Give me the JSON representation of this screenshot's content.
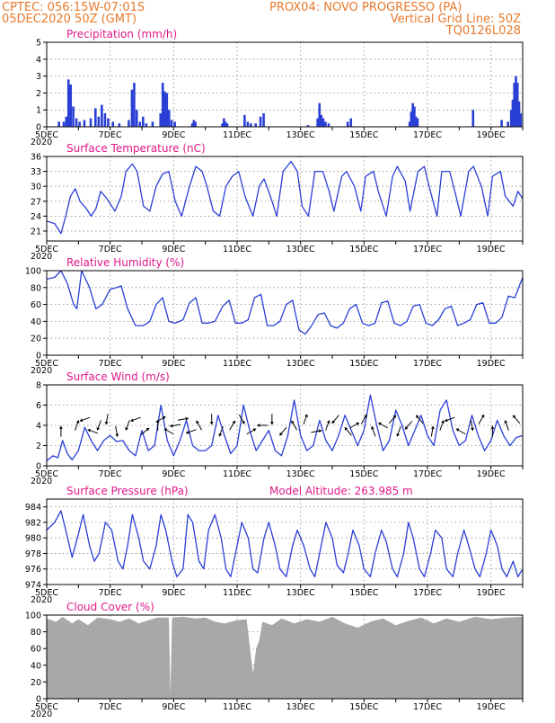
{
  "header": {
    "line1_left": "CPTEC:    056:15W-07:01S",
    "line1_right": "PROX04: NOVO PROGRESSO (PA)",
    "line2_left": "05DEC2020 50Z (GMT)",
    "line2_right": "Vertical Grid Line: 50Z",
    "line3_right": "TQ0126L028"
  },
  "colors": {
    "header": "#e8792b",
    "title": "#e0188a",
    "line": "#2a3fd6",
    "cloud": "#a8a8a8",
    "grid": "#8a8a8a"
  },
  "x_tick_labels": [
    "5DEC",
    "7DEC",
    "9DEC",
    "11DEC",
    "13DEC",
    "15DEC",
    "17DEC",
    "19DEC"
  ],
  "year_label": "2020",
  "chart_data": [
    {
      "id": "precip",
      "type": "bar",
      "title": "Precipitation (mm/h)",
      "ylim": [
        0,
        5
      ],
      "yticks": [
        "0",
        "1",
        "2",
        "3",
        "4",
        "5"
      ],
      "x_range_days": [
        0,
        15
      ],
      "bars": [
        [
          0.35,
          0.3
        ],
        [
          0.5,
          0.3
        ],
        [
          0.58,
          0.6
        ],
        [
          0.65,
          2.8
        ],
        [
          0.72,
          2.5
        ],
        [
          0.8,
          1.2
        ],
        [
          0.9,
          0.5
        ],
        [
          1.0,
          0.3
        ],
        [
          1.15,
          0.4
        ],
        [
          1.35,
          0.5
        ],
        [
          1.5,
          1.1
        ],
        [
          1.6,
          0.6
        ],
        [
          1.7,
          1.3
        ],
        [
          1.8,
          0.8
        ],
        [
          1.9,
          0.5
        ],
        [
          2.05,
          0.3
        ],
        [
          2.25,
          0.2
        ],
        [
          2.55,
          0.4
        ],
        [
          2.65,
          2.2
        ],
        [
          2.72,
          2.6
        ],
        [
          2.8,
          1.0
        ],
        [
          2.9,
          0.3
        ],
        [
          3.0,
          0.6
        ],
        [
          3.1,
          0.2
        ],
        [
          3.3,
          0.3
        ],
        [
          3.55,
          0.8
        ],
        [
          3.62,
          2.6
        ],
        [
          3.68,
          2.1
        ],
        [
          3.75,
          2.0
        ],
        [
          3.82,
          1.0
        ],
        [
          3.9,
          0.4
        ],
        [
          4.0,
          0.3
        ],
        [
          4.55,
          0.2
        ],
        [
          4.6,
          0.4
        ],
        [
          4.65,
          0.3
        ],
        [
          5.5,
          0.2
        ],
        [
          5.55,
          0.5
        ],
        [
          5.6,
          0.3
        ],
        [
          5.65,
          0.2
        ],
        [
          6.2,
          0.7
        ],
        [
          6.3,
          0.3
        ],
        [
          6.4,
          0.2
        ],
        [
          6.55,
          0.2
        ],
        [
          6.7,
          0.6
        ],
        [
          6.8,
          0.8
        ],
        [
          8.2,
          0.1
        ],
        [
          8.5,
          0.5
        ],
        [
          8.56,
          1.4
        ],
        [
          8.62,
          0.7
        ],
        [
          8.68,
          0.5
        ],
        [
          8.75,
          0.3
        ],
        [
          8.85,
          0.2
        ],
        [
          9.45,
          0.3
        ],
        [
          9.55,
          0.5
        ],
        [
          11.4,
          0.3
        ],
        [
          11.45,
          0.9
        ],
        [
          11.5,
          1.4
        ],
        [
          11.55,
          1.2
        ],
        [
          11.6,
          0.6
        ],
        [
          11.65,
          0.5
        ],
        [
          13.4,
          1.0
        ],
        [
          14.3,
          0.4
        ],
        [
          14.5,
          0.3
        ],
        [
          14.6,
          1.0
        ],
        [
          14.65,
          1.6
        ],
        [
          14.7,
          2.6
        ],
        [
          14.75,
          3.0
        ],
        [
          14.8,
          2.6
        ],
        [
          14.85,
          1.5
        ],
        [
          14.9,
          0.8
        ]
      ]
    },
    {
      "id": "temp",
      "type": "line",
      "title": "Surface Temperature (nC)",
      "ylim": [
        19,
        36
      ],
      "yticks": [
        "21",
        "24",
        "27",
        "30",
        "33",
        "36"
      ],
      "ytick_values": [
        21,
        24,
        27,
        30,
        33,
        36
      ],
      "x": [
        0,
        0.25,
        0.45,
        0.6,
        0.75,
        0.9,
        1.05,
        1.25,
        1.4,
        1.55,
        1.7,
        1.9,
        2.15,
        2.35,
        2.5,
        2.7,
        2.85,
        3.05,
        3.25,
        3.45,
        3.65,
        3.85,
        4.05,
        4.25,
        4.5,
        4.7,
        4.9,
        5.05,
        5.25,
        5.45,
        5.65,
        5.85,
        6.05,
        6.25,
        6.5,
        6.7,
        6.85,
        7.05,
        7.25,
        7.45,
        7.7,
        7.9,
        8.05,
        8.25,
        8.45,
        8.7,
        8.9,
        9.05,
        9.3,
        9.45,
        9.7,
        9.9,
        10.05,
        10.3,
        10.45,
        10.7,
        10.9,
        11.05,
        11.3,
        11.45,
        11.7,
        11.9,
        12.05,
        12.3,
        12.45,
        12.7,
        12.9,
        13.05,
        13.3,
        13.45,
        13.7,
        13.9,
        14.05,
        14.3,
        14.45,
        14.7,
        14.85,
        15.0
      ],
      "values": [
        23,
        22.5,
        20.5,
        24,
        28,
        29.5,
        27,
        25.5,
        24,
        25.5,
        29,
        27.5,
        25,
        28,
        33,
        34.5,
        33,
        26,
        25,
        30,
        32.5,
        33,
        27,
        24,
        30,
        34,
        33,
        30,
        25,
        24,
        30,
        32,
        33,
        28,
        24,
        30,
        31.5,
        28,
        24,
        33,
        35,
        33,
        26,
        24,
        33,
        33,
        29,
        25,
        32,
        33,
        30,
        25,
        32,
        33,
        29,
        24,
        32,
        34,
        31,
        25,
        33,
        34,
        30,
        24,
        33,
        33,
        28,
        24,
        33,
        34,
        30,
        24,
        32,
        33,
        28,
        26,
        29,
        27.5
      ]
    },
    {
      "id": "rh",
      "type": "line",
      "title": "Relative Humidity (%)",
      "ylim": [
        0,
        100
      ],
      "yticks": [
        "0",
        "20",
        "40",
        "60",
        "80",
        "100"
      ],
      "x": [
        0,
        0.25,
        0.45,
        0.65,
        0.85,
        0.95,
        1.1,
        1.35,
        1.55,
        1.75,
        2.0,
        2.2,
        2.35,
        2.55,
        2.8,
        3.05,
        3.25,
        3.45,
        3.65,
        3.85,
        4.05,
        4.3,
        4.5,
        4.7,
        4.9,
        5.1,
        5.3,
        5.55,
        5.75,
        5.95,
        6.15,
        6.35,
        6.55,
        6.75,
        6.95,
        7.15,
        7.35,
        7.55,
        7.75,
        7.95,
        8.15,
        8.35,
        8.55,
        8.75,
        8.95,
        9.15,
        9.35,
        9.55,
        9.75,
        9.95,
        10.15,
        10.35,
        10.55,
        10.75,
        10.95,
        11.15,
        11.35,
        11.55,
        11.75,
        11.95,
        12.15,
        12.35,
        12.55,
        12.75,
        12.95,
        13.15,
        13.35,
        13.55,
        13.75,
        13.95,
        14.15,
        14.35,
        14.55,
        14.75,
        15.0
      ],
      "values": [
        90,
        92,
        100,
        85,
        60,
        55,
        100,
        80,
        55,
        60,
        78,
        80,
        82,
        55,
        35,
        35,
        40,
        60,
        68,
        40,
        38,
        42,
        62,
        68,
        38,
        38,
        40,
        58,
        65,
        38,
        38,
        42,
        68,
        72,
        35,
        35,
        40,
        60,
        65,
        30,
        25,
        35,
        48,
        50,
        35,
        32,
        38,
        55,
        60,
        38,
        35,
        38,
        62,
        64,
        38,
        35,
        40,
        58,
        60,
        38,
        35,
        42,
        55,
        58,
        35,
        38,
        42,
        60,
        62,
        38,
        38,
        45,
        70,
        68,
        92
      ]
    },
    {
      "id": "wind",
      "type": "line",
      "title": "Surface Wind (m/s)",
      "ylim": [
        0,
        8
      ],
      "yticks": [
        "0",
        "2",
        "4",
        "6",
        "8"
      ],
      "x": [
        0,
        0.2,
        0.35,
        0.5,
        0.65,
        0.8,
        1.0,
        1.2,
        1.4,
        1.6,
        1.8,
        2.0,
        2.2,
        2.4,
        2.6,
        2.8,
        3.0,
        3.2,
        3.4,
        3.6,
        3.8,
        4.0,
        4.2,
        4.4,
        4.6,
        4.8,
        5.0,
        5.2,
        5.4,
        5.6,
        5.8,
        6.0,
        6.2,
        6.4,
        6.6,
        6.8,
        7.0,
        7.2,
        7.4,
        7.6,
        7.8,
        8.0,
        8.2,
        8.4,
        8.6,
        8.8,
        9.0,
        9.2,
        9.4,
        9.6,
        9.8,
        10.0,
        10.2,
        10.4,
        10.6,
        10.8,
        11.0,
        11.2,
        11.4,
        11.6,
        11.8,
        12.0,
        12.2,
        12.4,
        12.6,
        12.8,
        13.0,
        13.2,
        13.4,
        13.6,
        13.8,
        14.0,
        14.2,
        14.4,
        14.6,
        14.8,
        15.0
      ],
      "values": [
        0.5,
        1,
        0.8,
        2.5,
        1.2,
        0.6,
        1.5,
        3.8,
        2.5,
        1.5,
        2.5,
        3,
        2.4,
        2.5,
        1.5,
        1,
        3.5,
        1.5,
        2,
        6,
        2.5,
        1,
        2.5,
        4.5,
        2,
        1.5,
        1.5,
        2,
        5,
        3,
        1.2,
        2,
        6,
        3.5,
        1.5,
        2.5,
        3.5,
        1.5,
        1,
        3,
        6.5,
        3,
        1.5,
        2,
        4.5,
        2.5,
        1.5,
        3,
        5,
        3.5,
        2,
        3.5,
        7,
        4,
        1.5,
        2.5,
        5.5,
        4,
        2,
        3.5,
        5,
        3,
        2,
        5.5,
        6.5,
        3.5,
        2,
        2.5,
        5,
        3,
        1.5,
        2.5,
        4.5,
        3,
        2,
        2.8,
        3
      ]
    },
    {
      "id": "pres",
      "type": "line",
      "title": "Surface Pressure (hPa)",
      "subtitle": "Model Altitude: 263.985 m",
      "ylim": [
        974,
        985
      ],
      "yticks": [
        "974",
        "976",
        "978",
        "980",
        "982",
        "984"
      ],
      "ytick_values": [
        974,
        976,
        978,
        980,
        982,
        984
      ],
      "x": [
        0,
        0.25,
        0.45,
        0.6,
        0.8,
        1.0,
        1.15,
        1.35,
        1.5,
        1.65,
        1.85,
        2.05,
        2.25,
        2.4,
        2.55,
        2.7,
        2.9,
        3.05,
        3.25,
        3.45,
        3.6,
        3.75,
        3.95,
        4.1,
        4.3,
        4.45,
        4.6,
        4.8,
        4.95,
        5.1,
        5.3,
        5.5,
        5.65,
        5.8,
        6.0,
        6.15,
        6.35,
        6.5,
        6.65,
        6.85,
        7.0,
        7.2,
        7.35,
        7.55,
        7.75,
        7.9,
        8.1,
        8.3,
        8.45,
        8.6,
        8.8,
        9.0,
        9.15,
        9.35,
        9.5,
        9.65,
        9.85,
        10.0,
        10.2,
        10.35,
        10.55,
        10.7,
        10.9,
        11.05,
        11.25,
        11.4,
        11.55,
        11.75,
        11.9,
        12.1,
        12.25,
        12.45,
        12.6,
        12.8,
        12.95,
        13.15,
        13.3,
        13.5,
        13.65,
        13.85,
        14.0,
        14.2,
        14.35,
        14.5,
        14.7,
        14.85,
        15.0
      ],
      "values": [
        981,
        982,
        983.5,
        981,
        977.5,
        980.5,
        983,
        979,
        977,
        978,
        982,
        981,
        977,
        976,
        979,
        983,
        980,
        977,
        976,
        979,
        983,
        981,
        977,
        975,
        976,
        983,
        982,
        977,
        976,
        981,
        983,
        980,
        976,
        975,
        979,
        982,
        980,
        976,
        975.5,
        980,
        982,
        979,
        976,
        975,
        979,
        981,
        979,
        976,
        975,
        978,
        982,
        980,
        976.5,
        975.5,
        978,
        981,
        979,
        976,
        975,
        978,
        981,
        979.5,
        976,
        975,
        978,
        982,
        980,
        976,
        975,
        978,
        981,
        980,
        976,
        975,
        978,
        981,
        979,
        976,
        975,
        978,
        981,
        979,
        976,
        975,
        977,
        975,
        976
      ]
    },
    {
      "id": "cloud",
      "type": "area",
      "title": "Cloud Cover (%)",
      "ylim": [
        0,
        100
      ],
      "yticks": [
        "0",
        "20",
        "40",
        "60",
        "80",
        "100"
      ],
      "x": [
        0,
        0.3,
        0.5,
        0.8,
        1.0,
        1.3,
        1.6,
        2.0,
        2.3,
        2.6,
        2.9,
        3.2,
        3.5,
        3.85,
        3.9,
        3.95,
        4.3,
        4.7,
        5.0,
        5.3,
        5.6,
        6.0,
        6.3,
        6.5,
        6.6,
        6.7,
        6.8,
        7.1,
        7.4,
        7.8,
        8.2,
        8.6,
        9.0,
        9.4,
        9.8,
        10.2,
        10.6,
        11.0,
        11.4,
        11.8,
        12.2,
        12.6,
        13.0,
        13.5,
        14.0,
        14.5,
        15.0
      ],
      "values": [
        96,
        92,
        98,
        90,
        95,
        88,
        97,
        95,
        92,
        96,
        90,
        94,
        97,
        97,
        5,
        97,
        98,
        96,
        97,
        92,
        90,
        94,
        95,
        30,
        60,
        70,
        92,
        88,
        96,
        90,
        95,
        92,
        98,
        90,
        85,
        92,
        96,
        88,
        93,
        97,
        90,
        96,
        92,
        98,
        95,
        97,
        98
      ]
    }
  ],
  "wind_arrows": [
    {
      "x": 0.45,
      "dir": 90
    },
    {
      "x": 0.95,
      "dir": 70
    },
    {
      "x": 1.2,
      "dir": 200
    },
    {
      "x": 1.45,
      "dir": 160
    },
    {
      "x": 1.65,
      "dir": 250
    },
    {
      "x": 1.9,
      "dir": 260
    },
    {
      "x": 2.2,
      "dir": 280
    },
    {
      "x": 2.55,
      "dir": 250
    },
    {
      "x": 2.8,
      "dir": 200
    },
    {
      "x": 3.1,
      "dir": 40
    },
    {
      "x": 3.5,
      "dir": 90
    },
    {
      "x": 3.6,
      "dir": 30
    },
    {
      "x": 3.85,
      "dir": 150
    },
    {
      "x": 4.05,
      "dir": 190
    },
    {
      "x": 4.3,
      "dir": 10
    },
    {
      "x": 4.55,
      "dir": 200
    },
    {
      "x": 4.8,
      "dir": 120
    },
    {
      "x": 5.2,
      "dir": 270
    },
    {
      "x": 5.5,
      "dir": 250
    },
    {
      "x": 5.85,
      "dir": 60
    },
    {
      "x": 6.15,
      "dir": 300
    },
    {
      "x": 6.45,
      "dir": 30
    },
    {
      "x": 6.8,
      "dir": 180
    },
    {
      "x": 7.1,
      "dir": 270
    },
    {
      "x": 7.45,
      "dir": 230
    },
    {
      "x": 7.8,
      "dir": 120
    },
    {
      "x": 8.15,
      "dir": 70
    },
    {
      "x": 8.5,
      "dir": 10
    },
    {
      "x": 8.85,
      "dir": 70
    },
    {
      "x": 9.1,
      "dir": 230
    },
    {
      "x": 9.5,
      "dir": 130
    },
    {
      "x": 9.7,
      "dir": 30
    },
    {
      "x": 10.0,
      "dir": 60
    },
    {
      "x": 10.3,
      "dir": 110
    },
    {
      "x": 10.6,
      "dir": 150
    },
    {
      "x": 10.9,
      "dir": 50
    },
    {
      "x": 11.1,
      "dir": 250
    },
    {
      "x": 11.4,
      "dir": 230
    },
    {
      "x": 11.75,
      "dir": 130
    },
    {
      "x": 12.15,
      "dir": 80
    },
    {
      "x": 12.45,
      "dir": 70
    },
    {
      "x": 12.7,
      "dir": 200
    },
    {
      "x": 13.05,
      "dir": 150
    },
    {
      "x": 13.4,
      "dir": 280
    },
    {
      "x": 13.7,
      "dir": 60
    },
    {
      "x": 14.05,
      "dir": 90
    },
    {
      "x": 14.5,
      "dir": 110
    },
    {
      "x": 14.8,
      "dir": 130
    }
  ]
}
